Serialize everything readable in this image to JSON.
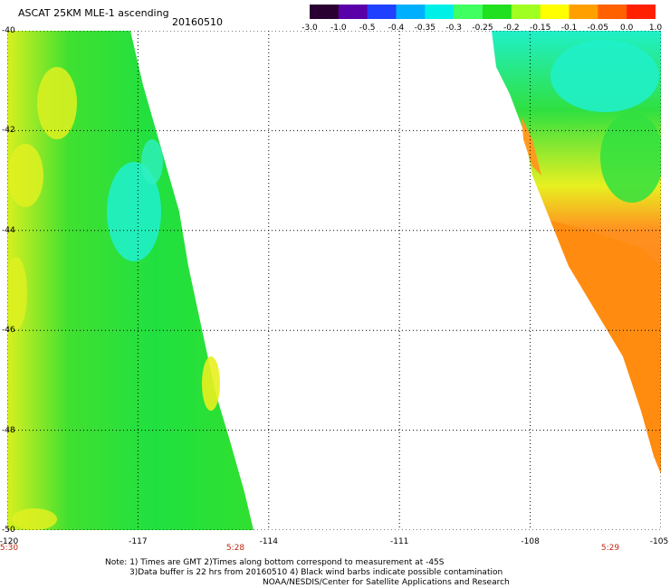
{
  "header": {
    "title": "ASCAT 25KM MLE-1 ascending",
    "date": "20160510"
  },
  "colorbar": {
    "ticks": [
      "-3.0",
      "-1.0",
      "-0.5",
      "-0.4",
      "-0.35",
      "-0.3",
      "-0.25",
      "-0.2",
      "-0.15",
      "-0.1",
      "-0.05",
      "0.0",
      "1.0"
    ],
    "colors": [
      "#2a0032",
      "#5a00a8",
      "#2040ff",
      "#00b0ff",
      "#00f0e8",
      "#40ff60",
      "#20e020",
      "#a0ff20",
      "#ffff00",
      "#ffa000",
      "#ff6000",
      "#ff2000"
    ]
  },
  "map": {
    "lat_labels": [
      "-40",
      "-42",
      "-44",
      "-46",
      "-48",
      "-50"
    ],
    "lon_labels": [
      "-120",
      "-117",
      "-114",
      "-111",
      "-108",
      "-105"
    ],
    "lat_range": [
      -50,
      -40
    ],
    "lon_range": [
      -120,
      -105
    ],
    "time_labels": [
      "5:30",
      "5:28",
      "5:29"
    ],
    "swath_colors": {
      "left_main": "#30e030",
      "left_yellow": "#d8f020",
      "left_cyan": "#20f0d0",
      "right_cyan": "#20f0c8",
      "right_green": "#30e040",
      "right_yellow": "#e8f020",
      "right_orange": "#ff8c10"
    }
  },
  "notes": {
    "line1": "Note: 1) Times are GMT 2)Times along bottom correspond to measurement at -45S",
    "line2": "3)Data buffer is 22 hrs from 20160510 4) Black wind barbs indicate possible contamination",
    "line3": "NOAA/NESDIS/Center for Satellite Applications and Research"
  }
}
